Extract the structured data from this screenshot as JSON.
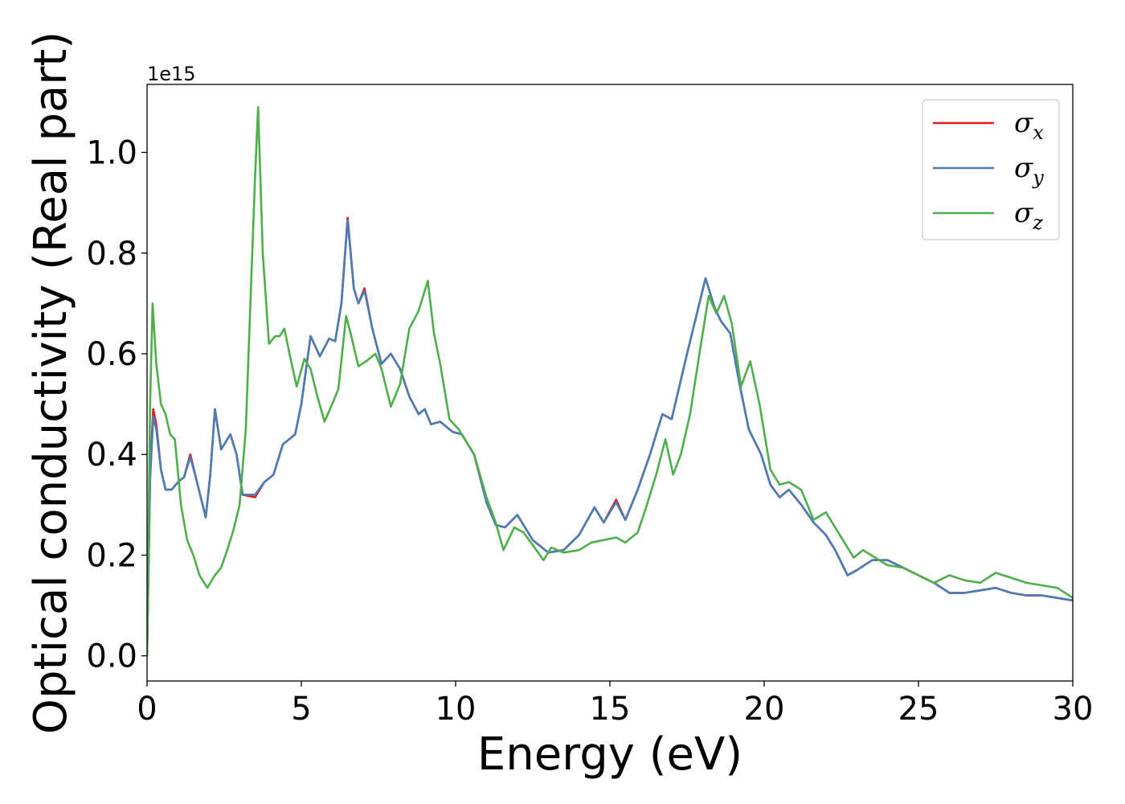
{
  "chart_data": {
    "type": "line",
    "title": "",
    "xlabel": "Energy (eV)",
    "ylabel": "Optical conductivity (Real part)",
    "y_offset_text": "1e15",
    "xlim": [
      0,
      30
    ],
    "ylim": [
      -0.05,
      1.135
    ],
    "x_ticks": [
      0,
      5,
      10,
      15,
      20,
      25,
      30
    ],
    "y_ticks": [
      0.0,
      0.2,
      0.4,
      0.6,
      0.8,
      1.0
    ],
    "x_tick_labels": [
      "0",
      "5",
      "10",
      "15",
      "20",
      "25",
      "30"
    ],
    "y_tick_labels": [
      "0.0",
      "0.2",
      "0.4",
      "0.6",
      "0.8",
      "1.0"
    ],
    "grid": false,
    "legend_position": "top-right",
    "series": [
      {
        "name": "σx",
        "legend_base": "σ",
        "legend_sub": "x",
        "color": "#e41a1c",
        "points": [
          [
            0,
            0.0
          ],
          [
            0.05,
            0.18
          ],
          [
            0.1,
            0.36
          ],
          [
            0.2,
            0.49
          ],
          [
            0.3,
            0.46
          ],
          [
            0.45,
            0.37
          ],
          [
            0.6,
            0.33
          ],
          [
            0.8,
            0.33
          ],
          [
            1.0,
            0.345
          ],
          [
            1.2,
            0.355
          ],
          [
            1.4,
            0.4
          ],
          [
            1.6,
            0.35
          ],
          [
            1.9,
            0.275
          ],
          [
            2.05,
            0.36
          ],
          [
            2.2,
            0.49
          ],
          [
            2.4,
            0.41
          ],
          [
            2.7,
            0.44
          ],
          [
            2.9,
            0.4
          ],
          [
            3.1,
            0.32
          ],
          [
            3.5,
            0.315
          ],
          [
            3.8,
            0.345
          ],
          [
            4.1,
            0.36
          ],
          [
            4.4,
            0.42
          ],
          [
            4.8,
            0.44
          ],
          [
            5.0,
            0.5
          ],
          [
            5.3,
            0.635
          ],
          [
            5.6,
            0.595
          ],
          [
            5.9,
            0.63
          ],
          [
            6.1,
            0.625
          ],
          [
            6.3,
            0.7
          ],
          [
            6.5,
            0.87
          ],
          [
            6.7,
            0.73
          ],
          [
            6.85,
            0.7
          ],
          [
            7.05,
            0.73
          ],
          [
            7.3,
            0.65
          ],
          [
            7.6,
            0.58
          ],
          [
            7.9,
            0.6
          ],
          [
            8.2,
            0.57
          ],
          [
            8.5,
            0.515
          ],
          [
            8.8,
            0.48
          ],
          [
            9.0,
            0.49
          ],
          [
            9.2,
            0.46
          ],
          [
            9.5,
            0.465
          ],
          [
            9.9,
            0.445
          ],
          [
            10.2,
            0.44
          ],
          [
            10.6,
            0.4
          ],
          [
            11.0,
            0.305
          ],
          [
            11.3,
            0.26
          ],
          [
            11.6,
            0.255
          ],
          [
            12.0,
            0.28
          ],
          [
            12.5,
            0.23
          ],
          [
            13.0,
            0.205
          ],
          [
            13.5,
            0.21
          ],
          [
            14.0,
            0.24
          ],
          [
            14.5,
            0.295
          ],
          [
            14.8,
            0.265
          ],
          [
            15.2,
            0.31
          ],
          [
            15.5,
            0.27
          ],
          [
            15.9,
            0.33
          ],
          [
            16.3,
            0.4
          ],
          [
            16.7,
            0.48
          ],
          [
            17.0,
            0.47
          ],
          [
            17.5,
            0.6
          ],
          [
            18.1,
            0.75
          ],
          [
            18.4,
            0.69
          ],
          [
            18.6,
            0.665
          ],
          [
            18.9,
            0.64
          ],
          [
            19.2,
            0.54
          ],
          [
            19.5,
            0.45
          ],
          [
            19.9,
            0.4
          ],
          [
            20.2,
            0.34
          ],
          [
            20.5,
            0.315
          ],
          [
            20.8,
            0.33
          ],
          [
            21.2,
            0.3
          ],
          [
            21.6,
            0.265
          ],
          [
            22.0,
            0.24
          ],
          [
            22.3,
            0.21
          ],
          [
            22.7,
            0.16
          ],
          [
            23.0,
            0.17
          ],
          [
            23.5,
            0.19
          ],
          [
            24.0,
            0.19
          ],
          [
            24.5,
            0.175
          ],
          [
            25.0,
            0.16
          ],
          [
            25.5,
            0.145
          ],
          [
            26.0,
            0.125
          ],
          [
            26.5,
            0.125
          ],
          [
            27.0,
            0.13
          ],
          [
            27.5,
            0.135
          ],
          [
            28.0,
            0.125
          ],
          [
            28.5,
            0.12
          ],
          [
            29.0,
            0.12
          ],
          [
            29.5,
            0.115
          ],
          [
            30.0,
            0.11
          ]
        ]
      },
      {
        "name": "σy",
        "legend_base": "σ",
        "legend_sub": "y",
        "color": "#4a7cb6",
        "points": [
          [
            0,
            0.0
          ],
          [
            0.05,
            0.18
          ],
          [
            0.1,
            0.35
          ],
          [
            0.2,
            0.475
          ],
          [
            0.3,
            0.45
          ],
          [
            0.45,
            0.37
          ],
          [
            0.6,
            0.33
          ],
          [
            0.8,
            0.33
          ],
          [
            1.0,
            0.345
          ],
          [
            1.2,
            0.355
          ],
          [
            1.4,
            0.395
          ],
          [
            1.6,
            0.35
          ],
          [
            1.9,
            0.275
          ],
          [
            2.05,
            0.36
          ],
          [
            2.2,
            0.49
          ],
          [
            2.4,
            0.41
          ],
          [
            2.7,
            0.44
          ],
          [
            2.9,
            0.4
          ],
          [
            3.1,
            0.32
          ],
          [
            3.5,
            0.32
          ],
          [
            3.8,
            0.345
          ],
          [
            4.1,
            0.36
          ],
          [
            4.4,
            0.42
          ],
          [
            4.8,
            0.44
          ],
          [
            5.0,
            0.5
          ],
          [
            5.3,
            0.635
          ],
          [
            5.6,
            0.595
          ],
          [
            5.9,
            0.63
          ],
          [
            6.1,
            0.625
          ],
          [
            6.3,
            0.7
          ],
          [
            6.5,
            0.865
          ],
          [
            6.7,
            0.73
          ],
          [
            6.85,
            0.7
          ],
          [
            7.05,
            0.725
          ],
          [
            7.3,
            0.65
          ],
          [
            7.6,
            0.58
          ],
          [
            7.9,
            0.6
          ],
          [
            8.2,
            0.57
          ],
          [
            8.5,
            0.515
          ],
          [
            8.8,
            0.48
          ],
          [
            9.0,
            0.49
          ],
          [
            9.2,
            0.46
          ],
          [
            9.5,
            0.465
          ],
          [
            9.9,
            0.445
          ],
          [
            10.2,
            0.44
          ],
          [
            10.6,
            0.4
          ],
          [
            11.0,
            0.305
          ],
          [
            11.3,
            0.26
          ],
          [
            11.6,
            0.255
          ],
          [
            12.0,
            0.28
          ],
          [
            12.5,
            0.23
          ],
          [
            13.0,
            0.205
          ],
          [
            13.5,
            0.21
          ],
          [
            14.0,
            0.24
          ],
          [
            14.5,
            0.295
          ],
          [
            14.8,
            0.265
          ],
          [
            15.2,
            0.305
          ],
          [
            15.5,
            0.27
          ],
          [
            15.9,
            0.33
          ],
          [
            16.3,
            0.4
          ],
          [
            16.7,
            0.48
          ],
          [
            17.0,
            0.47
          ],
          [
            17.5,
            0.6
          ],
          [
            18.1,
            0.75
          ],
          [
            18.4,
            0.69
          ],
          [
            18.6,
            0.665
          ],
          [
            18.9,
            0.64
          ],
          [
            19.2,
            0.54
          ],
          [
            19.5,
            0.45
          ],
          [
            19.9,
            0.4
          ],
          [
            20.2,
            0.34
          ],
          [
            20.5,
            0.315
          ],
          [
            20.8,
            0.33
          ],
          [
            21.2,
            0.3
          ],
          [
            21.6,
            0.265
          ],
          [
            22.0,
            0.24
          ],
          [
            22.3,
            0.21
          ],
          [
            22.7,
            0.16
          ],
          [
            23.0,
            0.17
          ],
          [
            23.5,
            0.19
          ],
          [
            24.0,
            0.19
          ],
          [
            24.5,
            0.175
          ],
          [
            25.0,
            0.16
          ],
          [
            25.5,
            0.145
          ],
          [
            26.0,
            0.125
          ],
          [
            26.5,
            0.125
          ],
          [
            27.0,
            0.13
          ],
          [
            27.5,
            0.135
          ],
          [
            28.0,
            0.125
          ],
          [
            28.5,
            0.12
          ],
          [
            29.0,
            0.12
          ],
          [
            29.5,
            0.115
          ],
          [
            30.0,
            0.11
          ]
        ]
      },
      {
        "name": "σz",
        "legend_base": "σ",
        "legend_sub": "z",
        "color": "#4daf4a",
        "points": [
          [
            0,
            0.0
          ],
          [
            0.05,
            0.25
          ],
          [
            0.1,
            0.5
          ],
          [
            0.18,
            0.7
          ],
          [
            0.3,
            0.58
          ],
          [
            0.45,
            0.5
          ],
          [
            0.6,
            0.48
          ],
          [
            0.75,
            0.44
          ],
          [
            0.9,
            0.43
          ],
          [
            1.1,
            0.3
          ],
          [
            1.3,
            0.23
          ],
          [
            1.5,
            0.2
          ],
          [
            1.7,
            0.16
          ],
          [
            1.95,
            0.135
          ],
          [
            2.2,
            0.16
          ],
          [
            2.4,
            0.175
          ],
          [
            2.6,
            0.21
          ],
          [
            2.8,
            0.25
          ],
          [
            3.0,
            0.3
          ],
          [
            3.2,
            0.45
          ],
          [
            3.35,
            0.7
          ],
          [
            3.5,
            0.95
          ],
          [
            3.6,
            1.09
          ],
          [
            3.75,
            0.8
          ],
          [
            3.95,
            0.62
          ],
          [
            4.15,
            0.635
          ],
          [
            4.3,
            0.635
          ],
          [
            4.45,
            0.65
          ],
          [
            4.65,
            0.59
          ],
          [
            4.85,
            0.535
          ],
          [
            5.1,
            0.59
          ],
          [
            5.3,
            0.57
          ],
          [
            5.5,
            0.52
          ],
          [
            5.75,
            0.465
          ],
          [
            6.0,
            0.5
          ],
          [
            6.2,
            0.53
          ],
          [
            6.45,
            0.675
          ],
          [
            6.6,
            0.64
          ],
          [
            6.85,
            0.575
          ],
          [
            7.1,
            0.585
          ],
          [
            7.4,
            0.6
          ],
          [
            7.6,
            0.57
          ],
          [
            7.9,
            0.495
          ],
          [
            8.2,
            0.54
          ],
          [
            8.5,
            0.65
          ],
          [
            8.8,
            0.685
          ],
          [
            9.1,
            0.745
          ],
          [
            9.3,
            0.64
          ],
          [
            9.5,
            0.58
          ],
          [
            9.8,
            0.47
          ],
          [
            10.1,
            0.45
          ],
          [
            10.6,
            0.4
          ],
          [
            11.0,
            0.315
          ],
          [
            11.3,
            0.265
          ],
          [
            11.55,
            0.21
          ],
          [
            11.9,
            0.255
          ],
          [
            12.2,
            0.245
          ],
          [
            12.5,
            0.22
          ],
          [
            12.85,
            0.19
          ],
          [
            13.1,
            0.215
          ],
          [
            13.5,
            0.205
          ],
          [
            14.0,
            0.21
          ],
          [
            14.4,
            0.225
          ],
          [
            14.8,
            0.23
          ],
          [
            15.2,
            0.235
          ],
          [
            15.5,
            0.225
          ],
          [
            15.9,
            0.245
          ],
          [
            16.2,
            0.3
          ],
          [
            16.5,
            0.36
          ],
          [
            16.8,
            0.43
          ],
          [
            17.05,
            0.36
          ],
          [
            17.3,
            0.4
          ],
          [
            17.6,
            0.48
          ],
          [
            17.9,
            0.6
          ],
          [
            18.2,
            0.715
          ],
          [
            18.45,
            0.68
          ],
          [
            18.7,
            0.715
          ],
          [
            18.95,
            0.66
          ],
          [
            19.25,
            0.535
          ],
          [
            19.55,
            0.585
          ],
          [
            19.85,
            0.5
          ],
          [
            20.2,
            0.37
          ],
          [
            20.5,
            0.34
          ],
          [
            20.8,
            0.345
          ],
          [
            21.2,
            0.33
          ],
          [
            21.6,
            0.27
          ],
          [
            22.0,
            0.285
          ],
          [
            22.4,
            0.245
          ],
          [
            22.9,
            0.195
          ],
          [
            23.2,
            0.21
          ],
          [
            23.6,
            0.195
          ],
          [
            24.0,
            0.18
          ],
          [
            24.5,
            0.175
          ],
          [
            25.0,
            0.16
          ],
          [
            25.5,
            0.145
          ],
          [
            26.0,
            0.16
          ],
          [
            26.5,
            0.15
          ],
          [
            27.0,
            0.145
          ],
          [
            27.5,
            0.165
          ],
          [
            28.0,
            0.155
          ],
          [
            28.5,
            0.145
          ],
          [
            29.0,
            0.14
          ],
          [
            29.5,
            0.135
          ],
          [
            30.0,
            0.115
          ]
        ]
      }
    ]
  }
}
